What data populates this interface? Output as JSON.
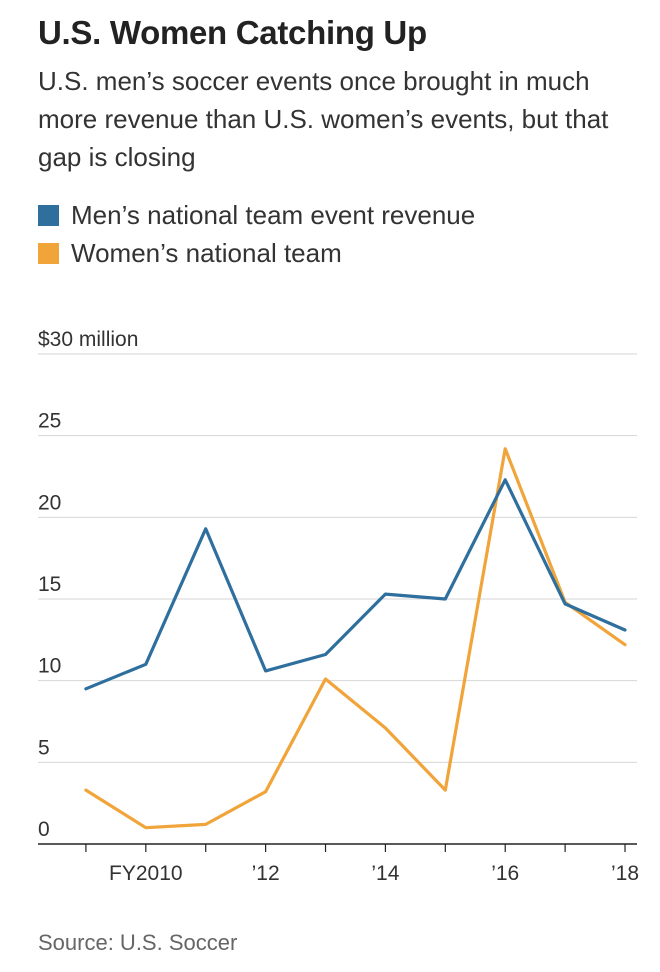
{
  "header": {
    "title": "U.S. Women Catching Up",
    "subtitle": "U.S. men’s soccer events once brought in much more revenue than U.S. women’s events, but that gap is closing"
  },
  "legend": [
    {
      "label": "Men’s national team event revenue",
      "color": "#2e6f9e"
    },
    {
      "label": "Women’s national team",
      "color": "#f0a43a"
    }
  ],
  "source": "Source: U.S. Soccer",
  "chart_data": {
    "type": "line",
    "x": [
      2009,
      2010,
      2011,
      2012,
      2013,
      2014,
      2015,
      2016,
      2017,
      2018
    ],
    "series": [
      {
        "name": "Men’s national team event revenue",
        "color": "#2e6f9e",
        "values": [
          9.5,
          11.0,
          19.3,
          10.6,
          11.6,
          15.3,
          15.0,
          22.3,
          14.7,
          13.1
        ]
      },
      {
        "name": "Women’s national team",
        "color": "#f0a43a",
        "values": [
          3.3,
          1.0,
          1.2,
          3.2,
          10.1,
          7.1,
          3.3,
          24.2,
          14.8,
          12.2
        ]
      }
    ],
    "ylim": [
      0,
      30
    ],
    "yticks": [
      0,
      5,
      10,
      15,
      20,
      25,
      30
    ],
    "ytick_labels": [
      "0",
      "5",
      "10",
      "15",
      "20",
      "25",
      "$30 million"
    ],
    "xticks": [
      2010,
      2012,
      2014,
      2016,
      2018
    ],
    "xtick_labels": [
      "FY2010",
      "’12",
      "’14",
      "’16",
      "’18"
    ],
    "xlim": [
      2008.2,
      2018.2
    ],
    "grid": true
  }
}
